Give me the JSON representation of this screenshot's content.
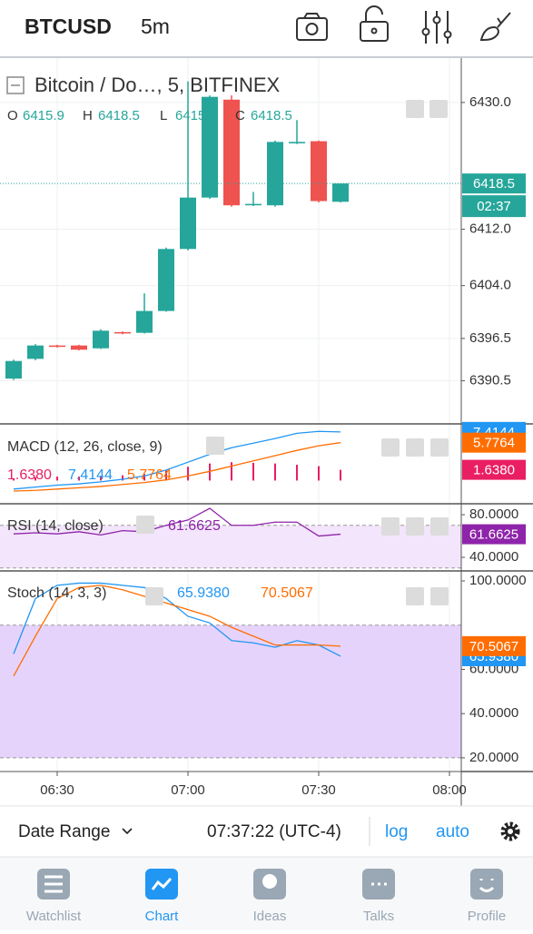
{
  "header": {
    "symbol": "BTCUSD",
    "interval": "5m"
  },
  "chart_data": {
    "type": "candlestick",
    "title": "Bitcoin / Do…, 5, BITFINEX",
    "ohlc_labels": [
      "O",
      "H",
      "L",
      "C"
    ],
    "up_color": "#26a69a",
    "down_color": "#ef5350",
    "candles": {
      "open": [
        6390.8,
        6393.6,
        6395.5,
        6395.5,
        6395.1,
        6397.4,
        6397.3,
        6400.4,
        6409.2,
        6416.5,
        6430.4,
        6415.4,
        6415.4,
        6424.2,
        6424.5,
        6415.9
      ],
      "high": [
        6393.5,
        6395.7,
        6395.6,
        6395.6,
        6397.8,
        6397.5,
        6402.9,
        6409.4,
        6433.0,
        6431.0,
        6431.0,
        6417.3,
        6424.6,
        6427.5,
        6424.6,
        6418.5
      ],
      "low": [
        6390.6,
        6393.4,
        6395.2,
        6394.8,
        6395.0,
        6397.1,
        6397.2,
        6400.3,
        6409.0,
        6416.3,
        6415.2,
        6415.3,
        6415.2,
        6424.1,
        6415.8,
        6415.8
      ],
      "close": [
        6393.3,
        6395.5,
        6395.3,
        6394.9,
        6397.6,
        6397.2,
        6400.4,
        6409.2,
        6416.5,
        6430.8,
        6415.4,
        6415.6,
        6424.4,
        6424.4,
        6416.0,
        6418.5
      ]
    },
    "ylim": [
      6384.5,
      6436.3
    ],
    "yticks": [
      {
        "value": 6430,
        "label": "6430.0"
      },
      {
        "value": 6412,
        "label": "6412.0"
      },
      {
        "value": 6404,
        "label": "6404.0"
      },
      {
        "value": 6396.5,
        "label": "6396.5"
      },
      {
        "value": 6390.5,
        "label": "6390.5"
      }
    ],
    "grid": true,
    "countdown": "02:37",
    "xticks": [
      "06:30",
      "07:00",
      "07:30",
      "08:00"
    ],
    "indicators": [
      {
        "type": "macd",
        "title": "MACD (12, 26, close, 9)",
        "ylim": [
          -3.4,
          8.5
        ],
        "series": [
          {
            "style": "histogram",
            "color": "#e91e63",
            "values": [
              0.3,
              0.5,
              0.6,
              0.6,
              0.7,
              0.8,
              1.0,
              1.5,
              2.1,
              2.6,
              2.8,
              2.7,
              2.6,
              2.4,
              2.2,
              1.638
            ],
            "value_labels": [
              null,
              null,
              null,
              null,
              null,
              null,
              null,
              null,
              null,
              null,
              null,
              null,
              null,
              null,
              null,
              "1.6380"
            ]
          },
          {
            "style": "line",
            "color": "#2196f3",
            "values": [
              -1.3,
              -1.0,
              -0.7,
              -0.5,
              -0.2,
              0.2,
              0.7,
              1.6,
              2.8,
              4.0,
              5.0,
              5.7,
              6.4,
              7.2,
              7.5,
              7.4144
            ]
          },
          {
            "style": "line",
            "color": "#ff6d00",
            "values": [
              -1.6,
              -1.5,
              -1.3,
              -1.1,
              -0.9,
              -0.6,
              -0.3,
              0.1,
              0.7,
              1.4,
              2.2,
              3.0,
              3.8,
              4.6,
              5.3,
              5.7764
            ]
          }
        ]
      },
      {
        "type": "rsi",
        "title": "RSI (14, close)",
        "ylim": [
          28.1,
          89.4
        ],
        "yticks": [
          {
            "value": 80,
            "label": "80.0000"
          },
          {
            "value": 40,
            "label": "40.0000"
          }
        ],
        "band": [
          30,
          70
        ],
        "band_color": "#f3e5fb",
        "series": [
          {
            "style": "line",
            "color": "#8e24aa",
            "values": [
              62,
              63,
              62,
              64,
              61,
              65,
              64,
              70,
              75,
              86,
              70,
              70,
              73,
              73,
              60,
              61.6625
            ]
          }
        ]
      },
      {
        "type": "stoch",
        "title": "Stoch (14, 3, 3)",
        "ylim": [
          13.8,
          104.1
        ],
        "yticks": [
          {
            "value": 100,
            "label": "100.0000"
          },
          {
            "value": 60,
            "label": "60.0000"
          },
          {
            "value": 40,
            "label": "40.0000"
          },
          {
            "value": 20,
            "label": "20.0000"
          }
        ],
        "band": [
          20,
          80
        ],
        "band_color": "#e6d3fb",
        "series": [
          {
            "style": "line",
            "color": "#2196f3",
            "values": [
              67,
              92,
              98,
              99,
              99,
              98,
              97,
              92,
              84,
              81,
              73,
              72,
              70,
              73,
              71,
              65.938
            ],
            "value_labels": [
              null,
              null,
              null,
              null,
              null,
              null,
              null,
              null,
              null,
              null,
              null,
              null,
              null,
              null,
              null,
              "65.9380"
            ]
          },
          {
            "style": "line",
            "color": "#ff6d00",
            "values": [
              57,
              75,
              92,
              97,
              98,
              96,
              93,
              90,
              87,
              84,
              79,
              75,
              71,
              71,
              71,
              70.5067
            ]
          }
        ]
      }
    ]
  },
  "toolbar": {
    "date_range": "Date Range",
    "time": "07:37:22 (UTC-4)",
    "log": "log",
    "auto": "auto"
  },
  "tabs": [
    {
      "label": "Watchlist"
    },
    {
      "label": "Chart",
      "active": true
    },
    {
      "label": "Ideas"
    },
    {
      "label": "Talks"
    },
    {
      "label": "Profile"
    }
  ]
}
